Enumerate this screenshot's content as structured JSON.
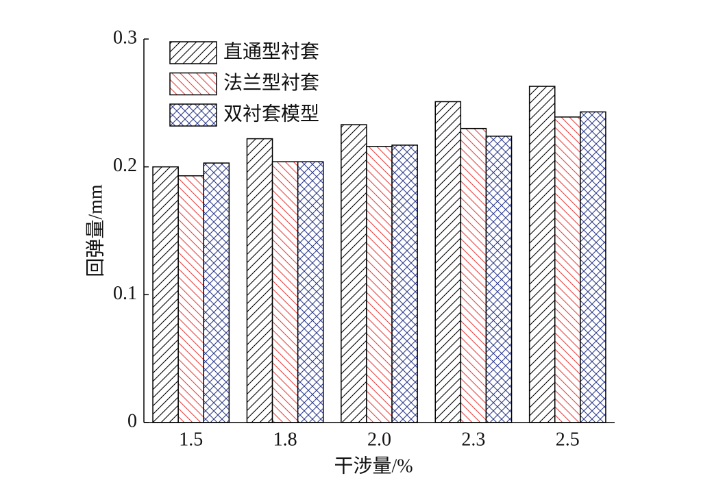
{
  "chart_data": {
    "type": "bar",
    "x_label": "干涉量/%",
    "y_label": "回弹量/mm",
    "categories": [
      "1.5",
      "1.8",
      "2.0",
      "2.3",
      "2.5"
    ],
    "series": [
      {
        "name": "直通型衬套",
        "color": "#000000",
        "hatch": "/",
        "values": [
          0.2,
          0.222,
          0.233,
          0.251,
          0.263
        ]
      },
      {
        "name": "法兰型衬套",
        "color": "#e8423f",
        "hatch": "\\",
        "values": [
          0.193,
          0.204,
          0.216,
          0.23,
          0.239
        ]
      },
      {
        "name": "双衬套模型",
        "color": "#2e3c8c",
        "hatch": "x",
        "values": [
          0.203,
          0.204,
          0.217,
          0.224,
          0.243
        ]
      }
    ],
    "ylim": [
      0,
      0.3
    ],
    "yticks": [
      0,
      0.1,
      0.2,
      0.3
    ],
    "legend": "upper left"
  }
}
